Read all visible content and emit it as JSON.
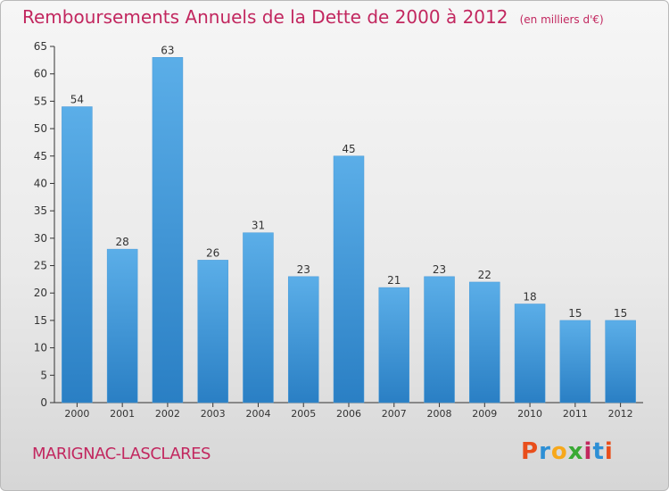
{
  "title": "Remboursements Annuels de la Dette de 2000 à 2012",
  "subtitle": "(en milliers d'€)",
  "commune": "MARIGNAC-LASCLARES",
  "logo": {
    "letters": [
      "P",
      "r",
      "o",
      "x",
      "i",
      "t",
      "i"
    ],
    "colors": [
      "#e94e1b",
      "#2d8fd5",
      "#f7a81b",
      "#3aa935",
      "#c2275f",
      "#2d8fd5",
      "#e94e1b"
    ]
  },
  "colors": {
    "accent": "#c2275f",
    "bar_top": "#5baee8",
    "bar_bottom": "#2a7fc4",
    "axis": "#333333",
    "grid": "#bdbdbd"
  },
  "chart_data": {
    "type": "bar",
    "categories": [
      "2000",
      "2001",
      "2002",
      "2003",
      "2004",
      "2005",
      "2006",
      "2007",
      "2008",
      "2009",
      "2010",
      "2011",
      "2012"
    ],
    "values": [
      54,
      28,
      63,
      26,
      31,
      23,
      45,
      21,
      23,
      22,
      18,
      15,
      15
    ],
    "ylim": [
      0,
      65
    ],
    "yticks": [
      0,
      5,
      10,
      15,
      20,
      25,
      30,
      35,
      40,
      45,
      50,
      55,
      60,
      65
    ],
    "xlabel": "",
    "ylabel": "",
    "grid": false,
    "data_labels": true
  }
}
